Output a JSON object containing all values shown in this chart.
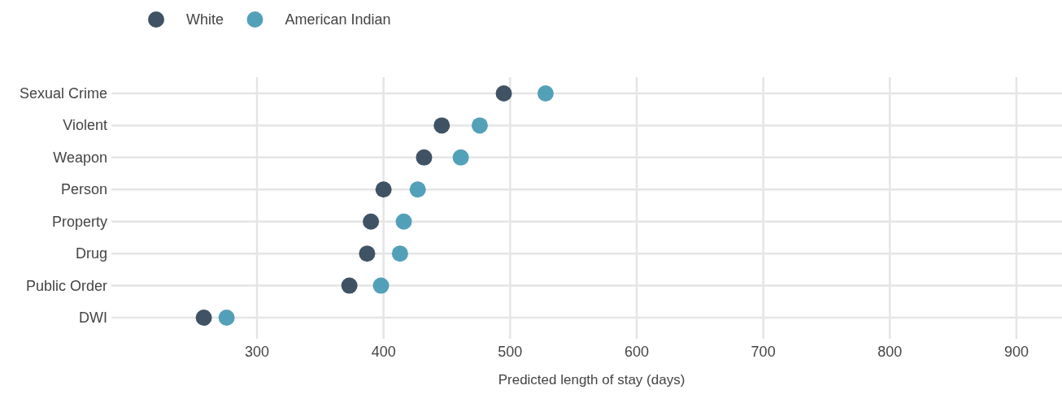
{
  "chart_data": {
    "type": "scatter",
    "orientation": "horizontal",
    "xlabel": "Predicted length of stay (days)",
    "categories": [
      "Sexual Crime",
      "Violent",
      "Weapon",
      "Person",
      "Property",
      "Drug",
      "Public Order",
      "DWI"
    ],
    "series": [
      {
        "name": "White",
        "color": "#354a5c",
        "values": [
          495,
          446,
          432,
          400,
          390,
          387,
          373,
          258
        ]
      },
      {
        "name": "American Indian",
        "color": "#4a9bb5",
        "values": [
          528,
          476,
          461,
          427,
          416,
          413,
          398,
          276
        ]
      }
    ],
    "xlim": [
      185,
      936
    ],
    "xticks": [
      300,
      400,
      500,
      600,
      700,
      800,
      900
    ],
    "grid": true,
    "legend": "top left",
    "marker": "circle"
  }
}
